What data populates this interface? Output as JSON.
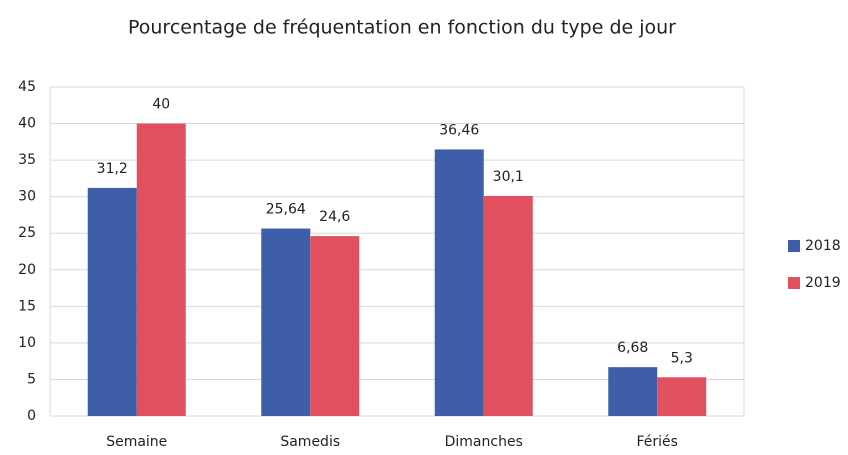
{
  "chart_data": {
    "type": "bar",
    "title": "Pourcentage de fréquentation en fonction du type de jour",
    "categories": [
      "Semaine",
      "Samedis",
      "Dimanches",
      "Fériés"
    ],
    "series": [
      {
        "name": "2018",
        "color": "#3f5ea8",
        "values": [
          31.2,
          25.64,
          36.46,
          6.68
        ],
        "value_labels": [
          "31,2",
          "25,64",
          "36,46",
          "6,68"
        ]
      },
      {
        "name": "2019",
        "color": "#e0505f",
        "values": [
          40,
          24.6,
          30.1,
          5.3
        ],
        "value_labels": [
          "40",
          "24,6",
          "30,1",
          "5,3"
        ]
      }
    ],
    "ylim": [
      0,
      45
    ],
    "yticks": [
      0,
      5,
      10,
      15,
      20,
      25,
      30,
      35,
      40,
      45
    ],
    "grid": true,
    "legend": "right"
  }
}
